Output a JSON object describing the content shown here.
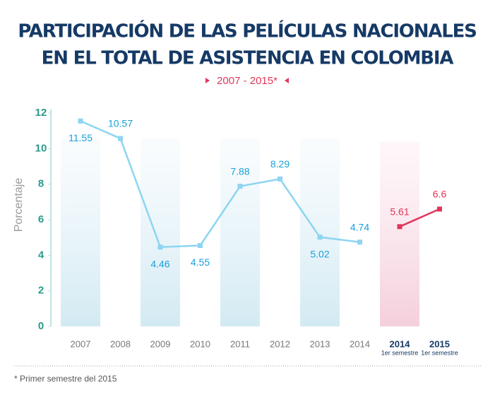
{
  "chart_data": {
    "type": "line",
    "title": [
      "PARTICIPACIÓN DE LAS PELÍCULAS NACIONALES",
      "EN EL TOTAL DE ASISTENCIA EN COLOMBIA"
    ],
    "subtitle": "2007 - 2015*",
    "y_label": "Porcentaje",
    "footnote": "* Primer semestre del 2015",
    "categories": [
      "2007",
      "2008",
      "2009",
      "2010",
      "2011",
      "2012",
      "2013",
      "2014",
      "2014",
      "2015"
    ],
    "category_notes": [
      null,
      null,
      null,
      null,
      null,
      null,
      null,
      null,
      "1er semestre",
      "1er semestre"
    ],
    "series": [
      {
        "color": "#8dd5f2",
        "values": [
          11.55,
          10.57,
          4.46,
          4.55,
          7.88,
          8.29,
          5.02,
          4.74,
          null,
          null
        ]
      },
      {
        "color": "#e0365a",
        "values": [
          null,
          null,
          null,
          null,
          null,
          null,
          null,
          null,
          5.61,
          6.6
        ]
      }
    ],
    "ylim": [
      0,
      12
    ],
    "yticks": [
      0,
      2,
      4,
      6,
      8,
      10,
      12
    ]
  }
}
